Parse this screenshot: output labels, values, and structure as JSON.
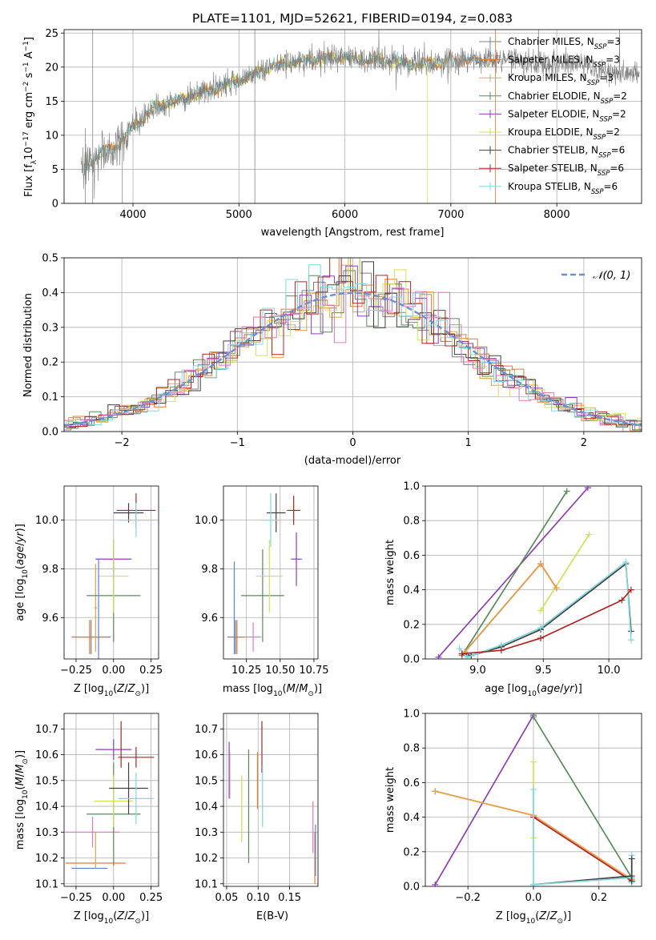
{
  "colors": {
    "Chabrier MILES": "#7f7f7f",
    "Salpeter MILES": "#e07b39",
    "Kroupa MILES": "#e8a04a",
    "Chabrier ELODIE": "#5b8a5b",
    "Salpeter ELODIE": "#8e3fb5",
    "Kroupa ELODIE": "#d4e157",
    "Chabrier STELIB": "#404040",
    "Salpeter STELIB": "#b22222",
    "Kroupa STELIB": "#7fd8e0",
    "extra_pink": "#e377c2",
    "extra_blue": "#5b7fd8",
    "normal": "#6a8fd8"
  },
  "chart_data": [
    {
      "id": "spectrum",
      "type": "line",
      "title": "PLATE=1101, MJD=52621, FIBERID=0194, z=0.083",
      "xlabel": "wavelength [Angstrom, rest frame]",
      "ylabel": "Flux [fλ10⁻¹⁷ erg cm⁻² s⁻¹ A⁻¹]",
      "xlim": [
        3350,
        8800
      ],
      "ylim": [
        0,
        25.5
      ],
      "xticks": [
        4000,
        5000,
        6000,
        7000,
        8000
      ],
      "yticks": [
        0,
        5,
        10,
        15,
        20,
        25
      ],
      "legend_position": "right",
      "legend": [
        {
          "key": "Chabrier MILES",
          "label": "Chabrier MILES, N",
          "sub": "SSP",
          "suffix": "=3"
        },
        {
          "key": "Salpeter MILES",
          "label": "Salpeter MILES, N",
          "sub": "SSP",
          "suffix": "=3"
        },
        {
          "key": "Kroupa MILES",
          "label": "Kroupa MILES, N",
          "sub": "SSP",
          "suffix": "=3"
        },
        {
          "key": "Chabrier ELODIE",
          "label": "Chabrier ELODIE, N",
          "sub": "SSP",
          "suffix": "=2"
        },
        {
          "key": "Salpeter ELODIE",
          "label": "Salpeter ELODIE, N",
          "sub": "SSP",
          "suffix": "=2"
        },
        {
          "key": "Kroupa ELODIE",
          "label": "Kroupa ELODIE, N",
          "sub": "SSP",
          "suffix": "=2"
        },
        {
          "key": "Chabrier STELIB",
          "label": "Chabrier STELIB, N",
          "sub": "SSP",
          "suffix": "=6"
        },
        {
          "key": "Salpeter STELIB",
          "label": "Salpeter STELIB, N",
          "sub": "SSP",
          "suffix": "=6"
        },
        {
          "key": "Kroupa STELIB",
          "label": "Kroupa STELIB, N",
          "sub": "SSP",
          "suffix": "=6"
        }
      ],
      "data_envelope": {
        "x": [
          3550,
          3700,
          3850,
          4000,
          4200,
          4400,
          4600,
          4800,
          5000,
          5200,
          5400,
          5600,
          5800,
          6000,
          6200,
          6400,
          6600,
          6800,
          7000,
          7200,
          7400,
          7600,
          7800,
          8000,
          8200,
          8400,
          8600
        ],
        "y": [
          5.5,
          7.5,
          8.5,
          11,
          14,
          15,
          16,
          17,
          18,
          19.5,
          20.5,
          21,
          21.2,
          21.5,
          21,
          21,
          20.5,
          20.5,
          21,
          21,
          21,
          21,
          20.5,
          20.5,
          20.5,
          19.5,
          19
        ]
      }
    },
    {
      "id": "residuals",
      "type": "bar",
      "xlabel": "(data-model)/error",
      "ylabel": "Normed distribution",
      "xlim": [
        -2.5,
        2.5
      ],
      "ylim": [
        0,
        0.5
      ],
      "xticks": [
        -2,
        -1,
        0,
        1,
        2
      ],
      "yticks": [
        0.0,
        0.1,
        0.2,
        0.3,
        0.4,
        0.5
      ],
      "legend_label": "𝒩(0, 1)",
      "legend_position": "top-right"
    },
    {
      "id": "z-age",
      "type": "scatter",
      "xlabel": "Z [log₁₀(Z/Z⊙)]",
      "ylabel": "age  [log₁₀(age/yr)]",
      "xlim": [
        -0.33,
        0.3
      ],
      "ylim": [
        9.43,
        10.14
      ],
      "xticks": [
        -0.25,
        0.0,
        0.25
      ],
      "yticks": [
        9.6,
        9.8,
        10.0
      ],
      "points": [
        {
          "key": "Chabrier MILES",
          "x": -0.15,
          "y": 9.52,
          "ex": 0.13,
          "ey": 0.07
        },
        {
          "key": "Salpeter MILES",
          "x": -0.16,
          "y": 9.52,
          "ex": 0.12,
          "ey": 0.07
        },
        {
          "key": "Kroupa MILES",
          "x": -0.12,
          "y": 9.64,
          "ex": 0.01,
          "ey": 0.18
        },
        {
          "key": "Chabrier ELODIE",
          "x": 0.0,
          "y": 9.69,
          "ex": 0.18,
          "ey": 0.19
        },
        {
          "key": "Salpeter ELODIE",
          "x": 0.0,
          "y": 9.84,
          "ex": 0.12,
          "ey": 0.08
        },
        {
          "key": "Kroupa ELODIE",
          "x": 0.0,
          "y": 9.77,
          "ex": 0.1,
          "ey": 0.15
        },
        {
          "key": "Chabrier STELIB",
          "x": 0.1,
          "y": 10.03,
          "ex": 0.1,
          "ey": 0.04
        },
        {
          "key": "Salpeter STELIB",
          "x": 0.15,
          "y": 10.04,
          "ex": 0.13,
          "ey": 0.07
        },
        {
          "key": "Kroupa STELIB",
          "x": 0.15,
          "y": 10.0,
          "ex": 0.12,
          "ey": 0.07
        },
        {
          "key": "extra_blue",
          "x": -0.1,
          "y": 9.6,
          "ex": 0.0,
          "ey": 0.24
        }
      ]
    },
    {
      "id": "mass-age",
      "type": "scatter",
      "xlabel": "mass [log₁₀(M/M⊙)]",
      "ylabel": "",
      "xlim": [
        10.08,
        10.78
      ],
      "ylim": [
        9.43,
        10.14
      ],
      "xticks": [
        10.25,
        10.5,
        10.75
      ],
      "yticks": [
        9.6,
        9.8,
        10.0
      ],
      "points": [
        {
          "key": "Chabrier MILES",
          "x": 10.17,
          "y": 9.52,
          "ex": 0.06,
          "ey": 0.07
        },
        {
          "key": "Salpeter MILES",
          "x": 10.18,
          "y": 9.52,
          "ex": 0.06,
          "ey": 0.07
        },
        {
          "key": "extra_blue",
          "x": 10.16,
          "y": 9.64,
          "ex": 0.0,
          "ey": 0.19
        },
        {
          "key": "extra_pink",
          "x": 10.3,
          "y": 9.52,
          "ex": 0.06,
          "ey": 0.06
        },
        {
          "key": "Chabrier ELODIE",
          "x": 10.37,
          "y": 9.69,
          "ex": 0.16,
          "ey": 0.19
        },
        {
          "key": "Kroupa ELODIE",
          "x": 10.42,
          "y": 9.77,
          "ex": 0.1,
          "ey": 0.15
        },
        {
          "key": "Salpeter ELODIE",
          "x": 10.62,
          "y": 9.84,
          "ex": 0.04,
          "ey": 0.11
        },
        {
          "key": "Chabrier STELIB",
          "x": 10.47,
          "y": 10.03,
          "ex": 0.07,
          "ey": 0.08
        },
        {
          "key": "Kroupa STELIB",
          "x": 10.43,
          "y": 10.0,
          "ex": 0.07,
          "ey": 0.11
        },
        {
          "key": "Salpeter STELIB",
          "x": 10.6,
          "y": 10.04,
          "ex": 0.05,
          "ey": 0.06
        }
      ]
    },
    {
      "id": "age-weight",
      "type": "line",
      "xlabel": "age  [log₁₀(age/yr)]",
      "ylabel": "mass weight",
      "xlim": [
        8.6,
        10.25
      ],
      "ylim": [
        0,
        1.0
      ],
      "xticks": [
        9.0,
        9.5,
        10.0
      ],
      "yticks": [
        0.0,
        0.2,
        0.4,
        0.6,
        0.8,
        1.0
      ],
      "series": [
        {
          "key": "Salpeter ELODIE",
          "x": [
            8.7,
            9.84
          ],
          "y": [
            0.01,
            0.99
          ]
        },
        {
          "key": "Chabrier ELODIE",
          "x": [
            8.88,
            9.68
          ],
          "y": [
            0.02,
            0.97
          ]
        },
        {
          "key": "Kroupa ELODIE",
          "x": [
            9.48,
            9.85
          ],
          "y": [
            0.28,
            0.72
          ]
        },
        {
          "key": "Salpeter MILES",
          "x": [
            8.9,
            9.48,
            9.6
          ],
          "y": [
            0.04,
            0.55,
            0.41
          ]
        },
        {
          "key": "Chabrier MILES",
          "x": [
            8.9,
            9.48,
            9.6
          ],
          "y": [
            0.04,
            0.55,
            0.41
          ]
        },
        {
          "key": "Kroupa MILES",
          "x": [
            8.9,
            9.48,
            9.6
          ],
          "y": [
            0.04,
            0.55,
            0.41
          ]
        },
        {
          "key": "Chabrier STELIB",
          "x": [
            8.88,
            8.95,
            9.18,
            9.48,
            10.13,
            10.17
          ],
          "y": [
            0.03,
            0.02,
            0.07,
            0.17,
            0.55,
            0.16
          ]
        },
        {
          "key": "Kroupa STELIB",
          "x": [
            8.86,
            8.92,
            9.18,
            9.48,
            10.13,
            10.17
          ],
          "y": [
            0.06,
            0.01,
            0.08,
            0.18,
            0.56,
            0.11
          ]
        },
        {
          "key": "Salpeter STELIB",
          "x": [
            8.88,
            9.18,
            9.48,
            10.1,
            10.17
          ],
          "y": [
            0.03,
            0.05,
            0.12,
            0.34,
            0.4
          ]
        }
      ]
    },
    {
      "id": "z-mass",
      "type": "scatter",
      "xlabel": "Z [log₁₀(Z/Z⊙)]",
      "ylabel": "mass [log₁₀(M/M⊙)]",
      "xlim": [
        -0.33,
        0.3
      ],
      "ylim": [
        10.09,
        10.76
      ],
      "xticks": [
        -0.25,
        0.0,
        0.25
      ],
      "yticks": [
        10.1,
        10.2,
        10.3,
        10.4,
        10.5,
        10.6,
        10.7
      ],
      "points": [
        {
          "key": "extra_blue",
          "x": -0.16,
          "y": 10.16,
          "ex": 0.12,
          "ey": 0.0
        },
        {
          "key": "Salpeter MILES",
          "x": -0.12,
          "y": 10.18,
          "ex": 0.2,
          "ey": 0.0
        },
        {
          "key": "extra_pink",
          "x": -0.14,
          "y": 10.3,
          "ex": 0.18,
          "ey": 0.06
        },
        {
          "key": "Kroupa MILES",
          "x": -0.12,
          "y": 10.23,
          "ex": 0.0,
          "ey": 0.07
        },
        {
          "key": "Chabrier ELODIE",
          "x": 0.0,
          "y": 10.37,
          "ex": 0.18,
          "ey": 0.2
        },
        {
          "key": "Kroupa ELODIE",
          "x": 0.0,
          "y": 10.42,
          "ex": 0.13,
          "ey": 0.1
        },
        {
          "key": "Salpeter ELODIE",
          "x": 0.0,
          "y": 10.62,
          "ex": 0.12,
          "ey": 0.04
        },
        {
          "key": "Chabrier STELIB",
          "x": 0.1,
          "y": 10.47,
          "ex": 0.13,
          "ey": 0.1
        },
        {
          "key": "Kroupa STELIB",
          "x": 0.15,
          "y": 10.43,
          "ex": 0.12,
          "ey": 0.1
        },
        {
          "key": "Salpeter STELIB",
          "x": 0.15,
          "y": 10.59,
          "ex": 0.12,
          "ey": 0.04
        },
        {
          "key": "Salpeter STELIB",
          "x": 0.05,
          "y": 10.64,
          "ex": 0.0,
          "ey": 0.09
        }
      ]
    },
    {
      "id": "ebv-mass",
      "type": "scatter",
      "xlabel": "E(B-V)",
      "ylabel": "",
      "xlim": [
        0.045,
        0.195
      ],
      "ylim": [
        10.09,
        10.76
      ],
      "xticks": [
        0.05,
        0.1,
        0.15
      ],
      "yticks": [
        10.1,
        10.2,
        10.3,
        10.4,
        10.5,
        10.6,
        10.7
      ],
      "points": [
        {
          "key": "Salpeter ELODIE",
          "x": 0.054,
          "y": 10.54,
          "ex": 0,
          "ey": 0.11
        },
        {
          "key": "extra_pink",
          "x": 0.055,
          "y": 10.52,
          "ex": 0,
          "ey": 0.09
        },
        {
          "key": "Kroupa ELODIE",
          "x": 0.074,
          "y": 10.39,
          "ex": 0,
          "ey": 0.13
        },
        {
          "key": "Chabrier ELODIE",
          "x": 0.085,
          "y": 10.4,
          "ex": 0,
          "ey": 0.22
        },
        {
          "key": "Salpeter MILES",
          "x": 0.099,
          "y": 10.5,
          "ex": 0,
          "ey": 0.11
        },
        {
          "key": "Salpeter STELIB",
          "x": 0.106,
          "y": 10.63,
          "ex": 0,
          "ey": 0.1
        },
        {
          "key": "Kroupa STELIB",
          "x": 0.107,
          "y": 10.44,
          "ex": 0,
          "ey": 0.12
        },
        {
          "key": "extra_pink",
          "x": 0.187,
          "y": 10.32,
          "ex": 0,
          "ey": 0.1
        },
        {
          "key": "Salpeter MILES",
          "x": 0.19,
          "y": 10.2,
          "ex": 0,
          "ey": 0.1
        },
        {
          "key": "extra_blue",
          "x": 0.191,
          "y": 10.23,
          "ex": 0,
          "ey": 0.1
        }
      ]
    },
    {
      "id": "z-weight",
      "type": "line",
      "xlabel": "Z [log₁₀(Z/Z⊙)]",
      "ylabel": "mass weight",
      "xlim": [
        -0.33,
        0.33
      ],
      "ylim": [
        0,
        1.0
      ],
      "xticks": [
        -0.2,
        0.0,
        0.2
      ],
      "yticks": [
        0.0,
        0.2,
        0.4,
        0.6,
        0.8,
        1.0
      ],
      "series": [
        {
          "key": "Salpeter ELODIE",
          "x": [
            -0.3,
            0.0
          ],
          "y": [
            0.01,
            0.99
          ]
        },
        {
          "key": "Chabrier ELODIE",
          "x": [
            0.0,
            0.3
          ],
          "y": [
            0.98,
            0.05
          ]
        },
        {
          "key": "Salpeter MILES",
          "x": [
            -0.3,
            0.0,
            0.3
          ],
          "y": [
            0.55,
            0.41,
            0.04
          ]
        },
        {
          "key": "Kroupa MILES",
          "x": [
            -0.3,
            0.0,
            0.3
          ],
          "y": [
            0.55,
            0.41,
            0.04
          ]
        },
        {
          "key": "Salpeter STELIB",
          "x": [
            0.0,
            0.3
          ],
          "y": [
            0.4,
            0.03
          ]
        },
        {
          "key": "Kroupa ELODIE",
          "x": [
            0.0,
            0.0
          ],
          "y": [
            0.28,
            0.72
          ]
        },
        {
          "key": "Chabrier STELIB",
          "x": [
            0.0,
            0.3
          ],
          "y": [
            0.01,
            0.06
          ]
        },
        {
          "key": "Kroupa STELIB",
          "x": [
            0.0,
            0.3
          ],
          "y": [
            0.01,
            0.05
          ]
        },
        {
          "key": "Kroupa STELIB",
          "x": [
            0.0,
            0.0
          ],
          "y": [
            0.01,
            0.56
          ]
        },
        {
          "key": "Kroupa STELIB",
          "x": [
            0.3,
            0.3
          ],
          "y": [
            0.02,
            0.18
          ]
        },
        {
          "key": "Chabrier STELIB",
          "x": [
            0.3,
            0.3
          ],
          "y": [
            0.03,
            0.16
          ]
        }
      ]
    }
  ]
}
